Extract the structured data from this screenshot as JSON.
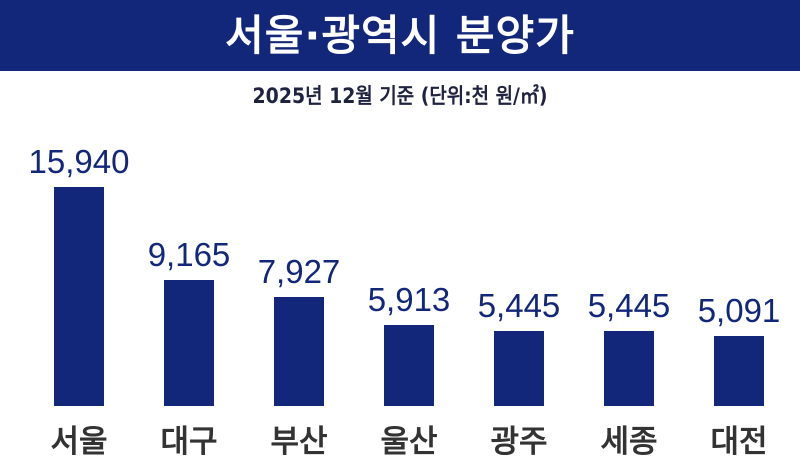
{
  "header": {
    "title": "서울·광역시 분양가",
    "subtitle": "2025년 12월 기준 (단위:천 원/㎡)"
  },
  "colors": {
    "bar": "#13277a",
    "banner": "#13277a",
    "label": "#333333"
  },
  "chart_data": {
    "type": "bar",
    "title": "서울·광역시 분양가",
    "subtitle": "2025년 12월 기준 (단위:천 원/㎡)",
    "categories": [
      "서울",
      "대구",
      "부산",
      "울산",
      "광주",
      "세종",
      "대전"
    ],
    "values": [
      15940,
      9165,
      7927,
      5913,
      5445,
      5445,
      5091
    ],
    "value_labels": [
      "15,940",
      "9,165",
      "7,927",
      "5,913",
      "5,445",
      "5,445",
      "5,091"
    ],
    "xlabel": "",
    "ylabel": "천 원/㎡",
    "grid": false,
    "legend": null
  }
}
